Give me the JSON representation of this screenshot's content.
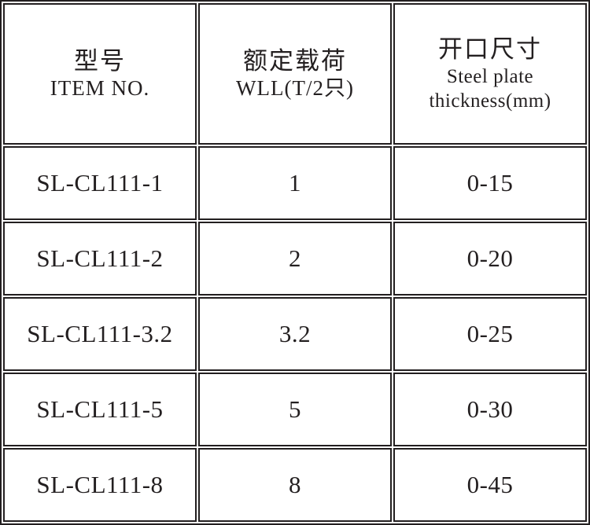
{
  "table": {
    "header": [
      {
        "cn": "型号",
        "en": "ITEM NO."
      },
      {
        "cn": "额定载荷",
        "en": "WLL(T/2只)"
      },
      {
        "cn": "开口尺寸",
        "en_line1": "Steel plate",
        "en_line2": "thickness(mm)"
      }
    ],
    "rows": [
      {
        "item_no": "SL-CL111-1",
        "wll": "1",
        "thickness": "0-15"
      },
      {
        "item_no": "SL-CL111-2",
        "wll": "2",
        "thickness": "0-20"
      },
      {
        "item_no": "SL-CL111-3.2",
        "wll": "3.2",
        "thickness": "0-25"
      },
      {
        "item_no": "SL-CL111-5",
        "wll": "5",
        "thickness": "0-30"
      },
      {
        "item_no": "SL-CL111-8",
        "wll": "8",
        "thickness": "0-45"
      }
    ]
  },
  "colors": {
    "border": "#231f20",
    "text": "#231f20",
    "background": "#ffffff"
  }
}
